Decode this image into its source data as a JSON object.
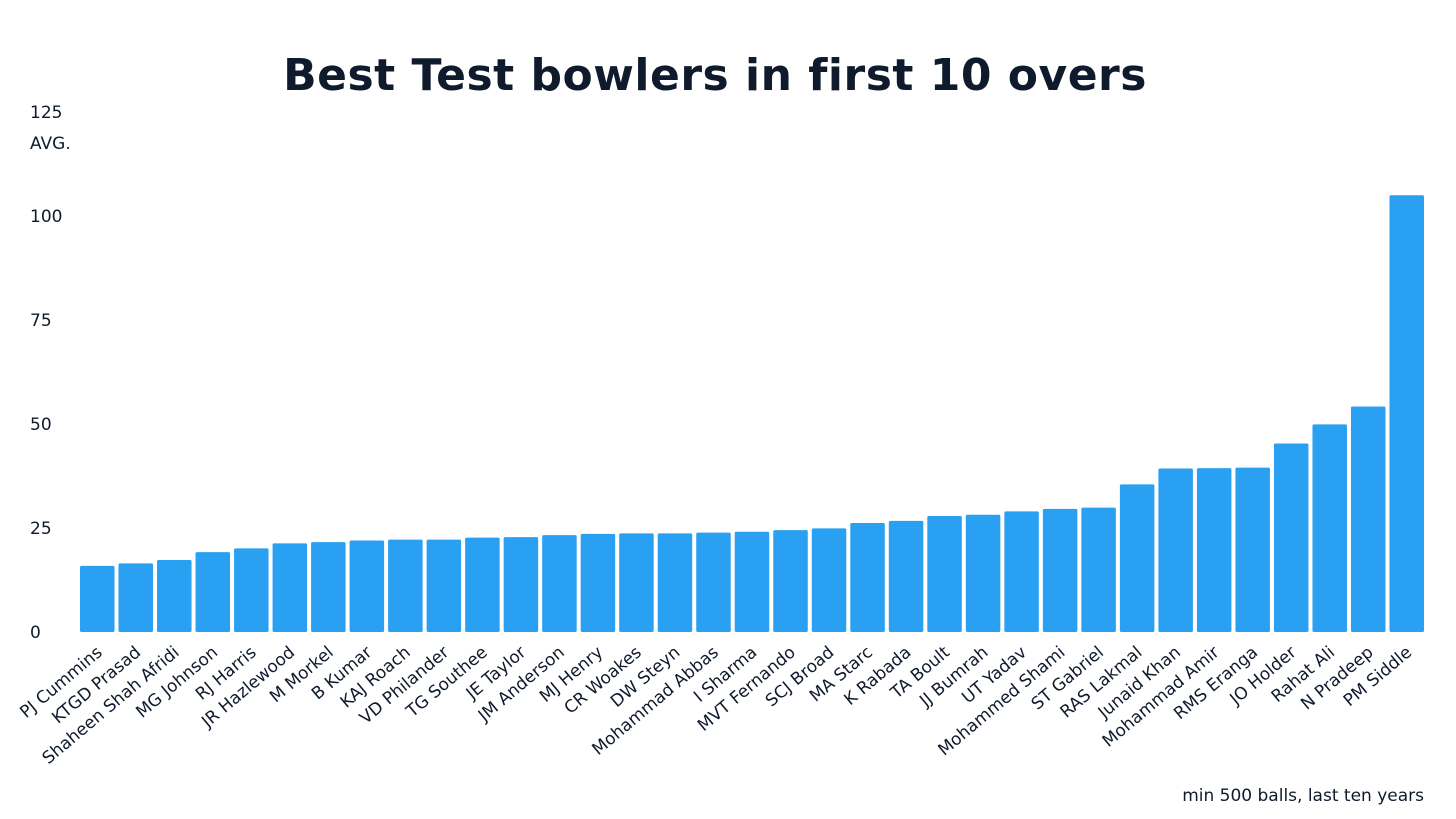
{
  "chart_data": {
    "type": "bar",
    "title": "Best Test bowlers in first 10 overs",
    "ylabel": "AVG.",
    "xlabel": "",
    "note": "min 500 balls, last ten years",
    "ylim": [
      0,
      125
    ],
    "yticks": [
      0,
      25,
      50,
      75,
      100,
      125
    ],
    "grid": false,
    "bar_color": "#29a0f1",
    "text_color": "#0f1b2d",
    "categories": [
      "PJ Cummins",
      "KTGD Prasad",
      "Shaheen Shah Afridi",
      "MG Johnson",
      "RJ Harris",
      "JR Hazlewood",
      "M Morkel",
      "B Kumar",
      "KAJ Roach",
      "VD Philander",
      "TG Southee",
      "JE Taylor",
      "JM Anderson",
      "MJ Henry",
      "CR Woakes",
      "DW Steyn",
      "Mohammad Abbas",
      "I Sharma",
      "MVT Fernando",
      "SCJ Broad",
      "MA Starc",
      "K Rabada",
      "TA Boult",
      "JJ Bumrah",
      "UT Yadav",
      "Mohammed Shami",
      "ST Gabriel",
      "RAS Lakmal",
      "Junaid Khan",
      "Mohammad Amir",
      "RMS Eranga",
      "JO Holder",
      "Rahat Ali",
      "N Pradeep",
      "PM Siddle"
    ],
    "values": [
      15.9,
      16.5,
      17.3,
      19.2,
      20.1,
      21.3,
      21.6,
      22.0,
      22.2,
      22.2,
      22.7,
      22.8,
      23.3,
      23.6,
      23.7,
      23.7,
      23.9,
      24.1,
      24.5,
      24.9,
      26.2,
      26.7,
      27.9,
      28.2,
      29.0,
      29.6,
      29.9,
      35.5,
      39.3,
      39.4,
      39.5,
      45.3,
      49.9,
      54.2,
      105.0
    ]
  }
}
